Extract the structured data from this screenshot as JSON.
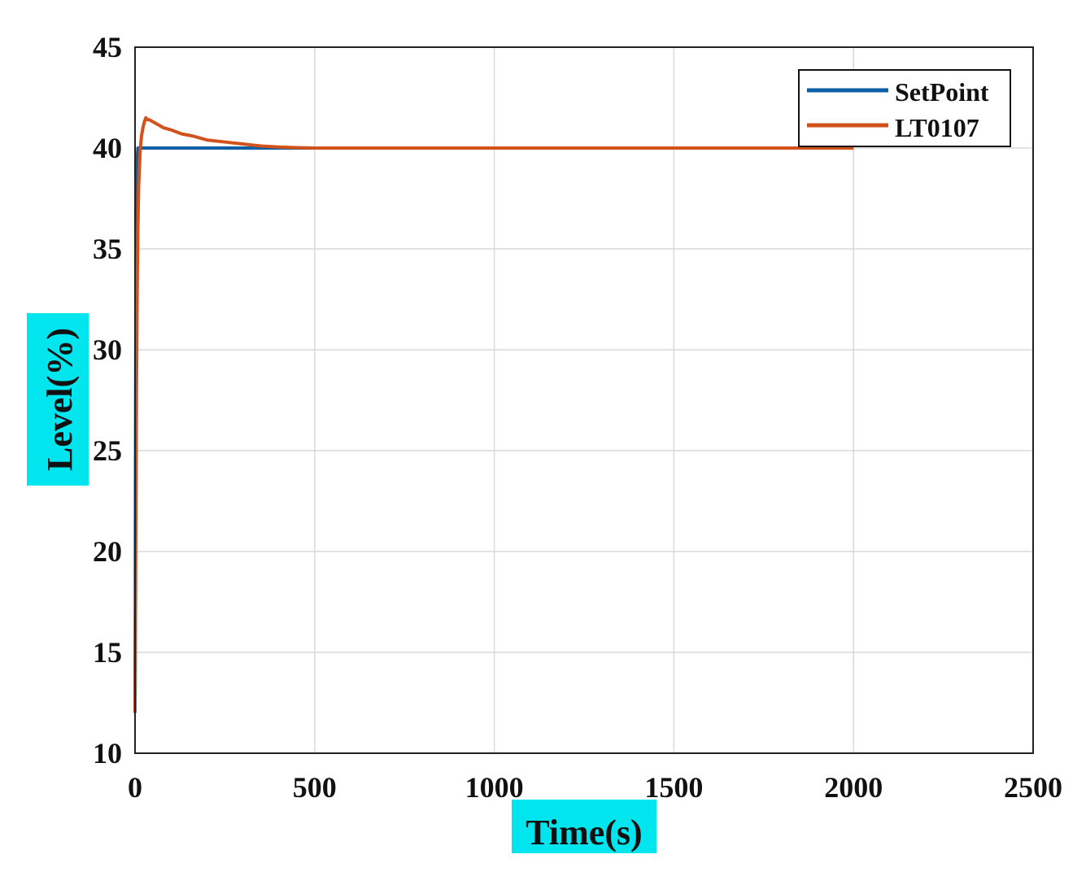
{
  "chart_data": {
    "type": "line",
    "xlabel": "Time(s)",
    "ylabel": "Level(%)",
    "xlim": [
      0,
      2500
    ],
    "ylim": [
      10,
      45
    ],
    "xticks": [
      0,
      500,
      1000,
      1500,
      2000,
      2500
    ],
    "yticks": [
      10,
      15,
      20,
      25,
      30,
      35,
      40,
      45
    ],
    "xtick_labels": [
      "0",
      "500",
      "1000",
      "1500",
      "2000",
      "2500"
    ],
    "ytick_labels": [
      "10",
      "15",
      "20",
      "25",
      "30",
      "35",
      "40",
      "45"
    ],
    "grid": true,
    "legend_position": "top-right",
    "label_highlight_color": "#00e5ee",
    "series": [
      {
        "name": "SetPoint",
        "color": "#0b5fa5",
        "x": [
          0,
          2,
          4,
          6,
          8,
          12,
          2000
        ],
        "y": [
          12,
          30,
          37,
          39.5,
          40,
          40,
          40
        ]
      },
      {
        "name": "LT0107",
        "color": "#d2521c",
        "x": [
          0,
          2,
          4,
          6,
          8,
          10,
          14,
          18,
          22,
          26,
          30,
          35,
          40,
          50,
          60,
          80,
          100,
          130,
          160,
          200,
          250,
          300,
          350,
          400,
          450,
          500,
          600,
          700,
          800,
          1000,
          1500,
          2000
        ],
        "y": [
          12,
          20,
          28,
          33,
          36,
          38,
          39.8,
          40.6,
          41.0,
          41.3,
          41.5,
          41.4,
          41.4,
          41.3,
          41.2,
          41.0,
          40.9,
          40.7,
          40.6,
          40.4,
          40.3,
          40.2,
          40.1,
          40.05,
          40.02,
          40.0,
          40.0,
          40.0,
          40.0,
          40.0,
          40.0,
          40.0
        ]
      }
    ]
  }
}
